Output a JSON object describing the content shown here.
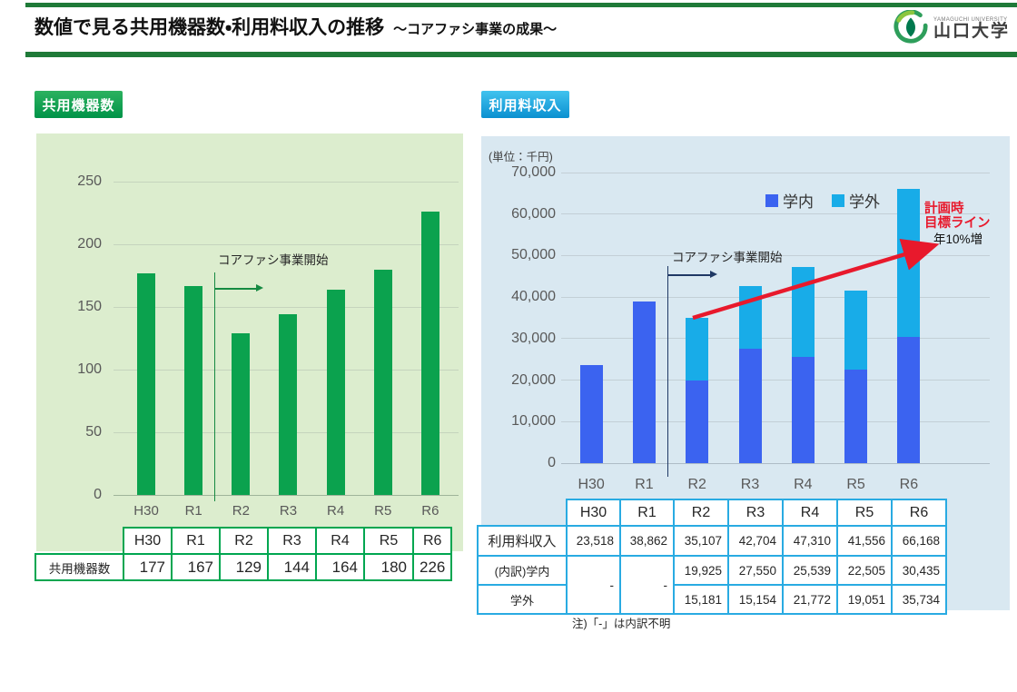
{
  "header": {
    "title": "数値で見る共用機器数・利用料収入の推移",
    "subtitle": "～コアファシ事業の成果～",
    "rule_color": "#1F7A38",
    "logo": {
      "university_en": "YAMAGUCHI UNIVERSITY",
      "university_ja": "山口大学"
    }
  },
  "left_panel": {
    "badge_label": "共用機器数",
    "badge_color_top": "#2CB25F",
    "badge_color_bottom": "#009348",
    "panel_bg": "#DCEDCE",
    "annotation_label": "コアファシ事業開始",
    "annotation_color": "#168A42",
    "chart_data": {
      "type": "bar",
      "title": "共用機器数",
      "categories": [
        "H30",
        "R1",
        "R2",
        "R3",
        "R4",
        "R5",
        "R6"
      ],
      "values": [
        177,
        167,
        129,
        144,
        164,
        180,
        226
      ],
      "bar_color": "#0BA24E",
      "ylim": [
        0,
        250
      ],
      "yticks": [
        {
          "value": 0,
          "label": "0"
        },
        {
          "value": 50,
          "label": "50"
        },
        {
          "value": 100,
          "label": "100"
        },
        {
          "value": 150,
          "label": "150"
        },
        {
          "value": 200,
          "label": "200"
        },
        {
          "value": 250,
          "label": "250"
        }
      ],
      "grid": true,
      "annotation": "コアファシ事業開始 (between R1 and R2)"
    },
    "table": {
      "border_color": "#00A650",
      "columns": [
        "H30",
        "R1",
        "R2",
        "R3",
        "R4",
        "R5",
        "R6"
      ],
      "row_label": "共用機器数",
      "values": [
        "177",
        "167",
        "129",
        "144",
        "164",
        "180",
        "226"
      ]
    }
  },
  "right_panel": {
    "badge_label": "利用料収入",
    "badge_color_top": "#41C3EF",
    "badge_color_bottom": "#0B90D0",
    "panel_bg": "#D9E8F1",
    "unit_label": "(単位：千円)",
    "legend": [
      {
        "label": "学内",
        "color": "#3B63F0"
      },
      {
        "label": "学外",
        "color": "#18ACE8"
      }
    ],
    "annotation_label": "コアファシ事業開始",
    "annotation_color": "#1F3864",
    "target_line_label1": "計画時",
    "target_line_label2": "目標ライン",
    "target_line_label3": "年10%増",
    "target_arrow_color": "#E8192C",
    "chart_data": {
      "type": "stacked-bar",
      "title": "利用料収入",
      "unit": "千円",
      "categories": [
        "H30",
        "R1",
        "R2",
        "R3",
        "R4",
        "R5",
        "R6"
      ],
      "series": [
        {
          "name": "学内",
          "color": "#3B63F0",
          "values": [
            23518,
            38862,
            19925,
            27550,
            25539,
            22505,
            30435
          ]
        },
        {
          "name": "学外",
          "color": "#18ACE8",
          "values": [
            0,
            0,
            15181,
            15154,
            21772,
            19051,
            35734
          ]
        }
      ],
      "totals": [
        23518,
        38862,
        35107,
        42704,
        47310,
        41556,
        66168
      ],
      "ylim": [
        0,
        70000
      ],
      "yticks": [
        {
          "value": 0,
          "label": "0"
        },
        {
          "value": 10000,
          "label": "10,000"
        },
        {
          "value": 20000,
          "label": "20,000"
        },
        {
          "value": 30000,
          "label": "30,000"
        },
        {
          "value": 40000,
          "label": "40,000"
        },
        {
          "value": 50000,
          "label": "50,000"
        },
        {
          "value": 60000,
          "label": "60,000"
        },
        {
          "value": 70000,
          "label": "70,000"
        }
      ],
      "grid": true,
      "legend_position": "top-right"
    },
    "table": {
      "border_color": "#29ABE2",
      "columns": [
        "H30",
        "R1",
        "R2",
        "R3",
        "R4",
        "R5",
        "R6"
      ],
      "rows": [
        {
          "label": "利用料収入",
          "values": [
            "23,518",
            "38,862",
            "35,107",
            "42,704",
            "47,310",
            "41,556",
            "66,168"
          ]
        },
        {
          "label": "(内訳)学内",
          "values": [
            "-",
            "-",
            "19,925",
            "27,550",
            "25,539",
            "22,505",
            "30,435"
          ]
        },
        {
          "label": "学外",
          "values": [
            "",
            "",
            "15,181",
            "15,154",
            "21,772",
            "19,051",
            "35,734"
          ]
        }
      ]
    },
    "note": "注)「-」は内訳不明"
  }
}
